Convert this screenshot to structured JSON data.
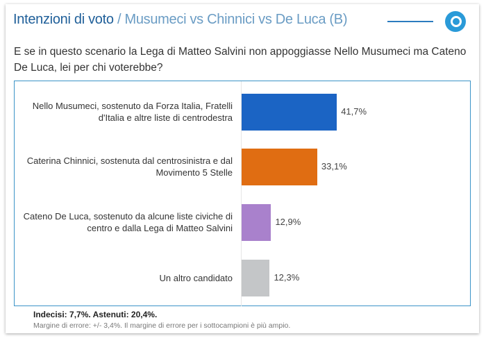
{
  "header": {
    "title_bold": "Intenzioni di voto",
    "title_rest": " / Musumeci vs Chinnici vs De Luca (B)",
    "logo_icon": "q-logo-icon"
  },
  "question": "E se in questo scenario la Lega di Matteo Salvini non appoggiasse Nello Musumeci ma Cateno De Luca, lei per chi voterebbe?",
  "chart_data": {
    "type": "bar",
    "orientation": "horizontal",
    "categories": [
      "Nello Musumeci, sostenuto da Forza Italia, Fratelli d'Italia e altre liste di centrodestra",
      "Caterina Chinnici, sostenuta dal centrosinistra e dal Movimento 5 Stelle",
      "Cateno De Luca, sostenuto da alcune liste civiche di centro e dalla Lega di Matteo Salvini",
      "Un altro candidato"
    ],
    "values": [
      41.7,
      33.1,
      12.9,
      12.3
    ],
    "value_labels": [
      "41,7%",
      "33,1%",
      "12,9%",
      "12,3%"
    ],
    "colors": [
      "#1b64c4",
      "#e06d12",
      "#a981cc",
      "#c4c6c8"
    ]
  },
  "footer": {
    "bold": "Indecisi: 7,7%. Astenuti: 20,4%.",
    "note": "Margine di errore: +/- 3,4%. Il margine di errore per i sottocampioni è più ampio."
  }
}
